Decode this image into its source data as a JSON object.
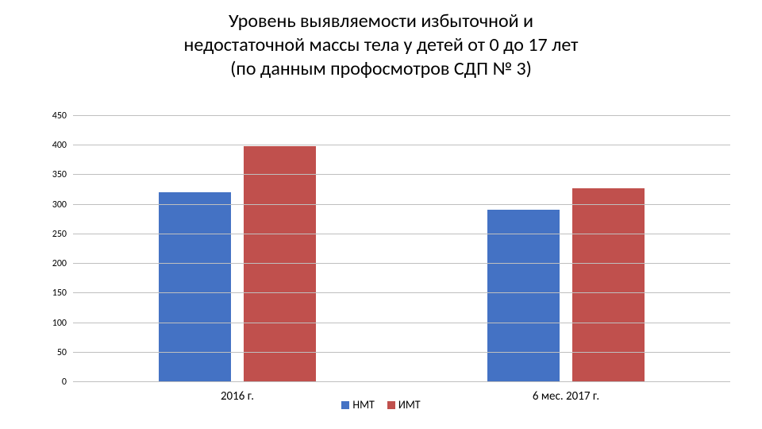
{
  "chart": {
    "type": "bar",
    "title_lines": [
      "Уровень выявляемости избыточной и",
      "недостаточной массы тела у детей от 0 до 17 лет",
      "(по данным профосмотров СДП № 3)"
    ],
    "title_fontsize": 24,
    "categories": [
      "2016 г.",
      "6 мес. 2017 г."
    ],
    "series": [
      {
        "name": "НМТ",
        "color": "#4472c4",
        "values": [
          320,
          290
        ]
      },
      {
        "name": "ИМТ",
        "color": "#c0504d",
        "values": [
          398,
          327
        ]
      }
    ],
    "ylim": [
      0,
      450
    ],
    "ytick_step": 50,
    "grid_color": "#bfbfbf",
    "axis_label_fontsize": 12,
    "category_label_fontsize": 15,
    "legend_fontsize": 14,
    "background_color": "#ffffff",
    "bar_gap_within_group_pct": 4,
    "bar_width_pct": 22,
    "group_width_pct": 50
  }
}
